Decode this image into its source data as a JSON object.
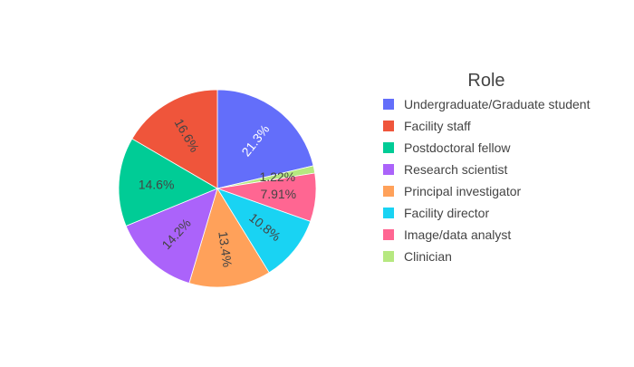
{
  "chart_data": {
    "type": "pie",
    "legend_title": "Role",
    "legend_position": "right",
    "direction": "clockwise",
    "start_angle_deg": 90,
    "slices": [
      {
        "label": "Undergraduate/Graduate student",
        "value": 21.3,
        "display": "21.3%",
        "color": "#636EFA",
        "text_color": "#ffffff"
      },
      {
        "label": "Clinician",
        "value": 1.22,
        "display": "1.22%",
        "color": "#B6E880",
        "text_color": "#444444"
      },
      {
        "label": "Image/data analyst",
        "value": 7.91,
        "display": "7.91%",
        "color": "#FF6692",
        "text_color": "#444444"
      },
      {
        "label": "Facility director",
        "value": 10.8,
        "display": "10.8%",
        "color": "#19D3F3",
        "text_color": "#444444"
      },
      {
        "label": "Principal investigator",
        "value": 13.4,
        "display": "13.4%",
        "color": "#FFA15A",
        "text_color": "#444444"
      },
      {
        "label": "Research scientist",
        "value": 14.2,
        "display": "14.2%",
        "color": "#AB63FA",
        "text_color": "#444444"
      },
      {
        "label": "Postdoctoral fellow",
        "value": 14.6,
        "display": "14.6%",
        "color": "#00CC96",
        "text_color": "#444444"
      },
      {
        "label": "Facility staff",
        "value": 16.6,
        "display": "16.6%",
        "color": "#EF553B",
        "text_color": "#444444"
      }
    ],
    "legend_order": [
      "Undergraduate/Graduate student",
      "Facility staff",
      "Postdoctoral fellow",
      "Research scientist",
      "Principal investigator",
      "Facility director",
      "Image/data analyst",
      "Clinician"
    ]
  }
}
